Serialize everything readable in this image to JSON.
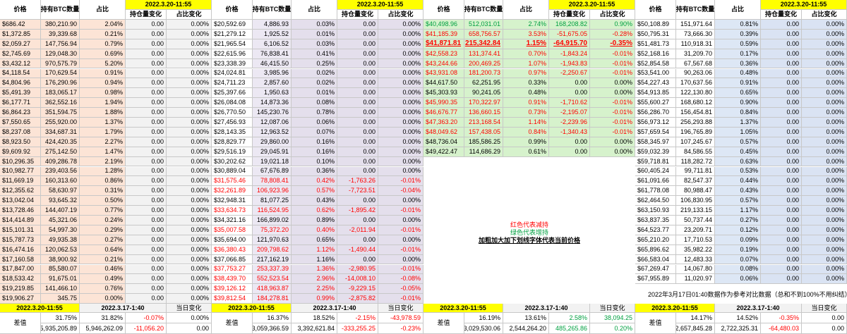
{
  "blocks": [
    {
      "header": {
        "price": "价格",
        "qty": "持有BTC数量",
        "pct": "占比",
        "date": "2022.3.20-11:55",
        "change": "持仓量变化",
        "pct_change": "占比变化"
      },
      "rows": [
        [
          "$686.42",
          "380,210.90",
          "2.04%",
          "0.00",
          "0.00%"
        ],
        [
          "$1,372.85",
          "39,339.68",
          "0.21%",
          "0.00",
          "0.00%"
        ],
        [
          "$2,059.27",
          "147,756.94",
          "0.79%",
          "0.00",
          "0.00%"
        ],
        [
          "$2,745.69",
          "129,048.30",
          "0.69%",
          "0.00",
          "0.00%"
        ],
        [
          "$3,432.12",
          "970,575.79",
          "5.20%",
          "0.00",
          "0.00%"
        ],
        [
          "$4,118.54",
          "170,629.54",
          "0.91%",
          "0.00",
          "0.00%"
        ],
        [
          "$4,804.96",
          "176,290.96",
          "0.94%",
          "0.00",
          "0.00%"
        ],
        [
          "$5,491.39",
          "183,065.17",
          "0.98%",
          "0.00",
          "0.00%"
        ],
        [
          "$6,177.71",
          "362,552.16",
          "1.94%",
          "0.00",
          "0.00%"
        ],
        [
          "$6,864.23",
          "351,594.75",
          "1.88%",
          "0.00",
          "0.00%"
        ],
        [
          "$7,550.65",
          "255,920.00",
          "1.37%",
          "0.00",
          "0.00%"
        ],
        [
          "$8,237.08",
          "334,687.31",
          "1.79%",
          "0.00",
          "0.00%"
        ],
        [
          "$8,923.50",
          "424,420.35",
          "2.27%",
          "0.00",
          "0.00%"
        ],
        [
          "$9,609.92",
          "275,142.50",
          "1.47%",
          "0.00",
          "0.00%"
        ],
        [
          "$10,296.35",
          "409,286.78",
          "2.19%",
          "0.00",
          "0.00%"
        ],
        [
          "$10,982.77",
          "239,403.56",
          "1.28%",
          "0.00",
          "0.00%"
        ],
        [
          "$11,669.19",
          "160,313.60",
          "0.86%",
          "0.00",
          "0.00%"
        ],
        [
          "$12,355.62",
          "58,630.97",
          "0.31%",
          "0.00",
          "0.00%"
        ],
        [
          "$13,042.04",
          "93,645.32",
          "0.50%",
          "0.00",
          "0.00%"
        ],
        [
          "$13,728.46",
          "144,407.19",
          "0.77%",
          "0.00",
          "0.00%"
        ],
        [
          "$14,414.89",
          "45,321.06",
          "0.24%",
          "0.00",
          "0.00%"
        ],
        [
          "$15,101.31",
          "54,997.30",
          "0.29%",
          "0.00",
          "0.00%"
        ],
        [
          "$15,787.73",
          "49,935.38",
          "0.27%",
          "0.00",
          "0.00%"
        ],
        [
          "$16,474.16",
          "120,062.53",
          "0.64%",
          "0.00",
          "0.00%"
        ],
        [
          "$17,160.58",
          "38,900.92",
          "0.21%",
          "0.00",
          "0.00%"
        ],
        [
          "$17,847.00",
          "85,580.07",
          "0.46%",
          "0.00",
          "0.00%"
        ],
        [
          "$18,533.42",
          "91,675.01",
          "0.49%",
          "0.00",
          "0.00%"
        ],
        [
          "$19,219.85",
          "141,466.10",
          "0.76%",
          "0.00",
          "0.00%"
        ],
        [
          "$19,906.27",
          "345.75",
          "0.00%",
          "0.00",
          "0.00%"
        ]
      ],
      "footer": {
        "date_now": "2022.3.20-11:55",
        "date_ref": "2022.3.17-1:40",
        "change_label": "当日变化",
        "diff_label": "差值",
        "pct": [
          "31.75%",
          "31.82%",
          "-0.07%",
          "0.00%"
        ],
        "amount": [
          "5,935,205.89",
          "5,946,262.09",
          "-11,056.20",
          "0.00"
        ]
      }
    },
    {
      "header": {
        "price": "价格",
        "qty": "持有BTC数量",
        "pct": "占比",
        "date": "2022.3.20-11:55",
        "change": "持仓量变化",
        "pct_change": "占比变化"
      },
      "rows": [
        [
          "$20,592.69",
          "4,886.93",
          "0.03%",
          "0.00",
          "0.00%"
        ],
        [
          "$21,279.12",
          "1,925.52",
          "0.01%",
          "0.00",
          "0.00%"
        ],
        [
          "$21,965.54",
          "6,106.52",
          "0.03%",
          "0.00",
          "0.00%"
        ],
        [
          "$22,615.96",
          "76,838.41",
          "0.41%",
          "0.00",
          "0.00%"
        ],
        [
          "$23,338.39",
          "46,415.50",
          "0.25%",
          "0.00",
          "0.00%"
        ],
        [
          "$24,024.81",
          "3,985.96",
          "0.02%",
          "0.00",
          "0.00%"
        ],
        [
          "$24,711.23",
          "2,857.60",
          "0.02%",
          "0.00",
          "0.00%"
        ],
        [
          "$25,397.66",
          "1,950.63",
          "0.01%",
          "0.00",
          "0.00%"
        ],
        [
          "$26,084.08",
          "14,873.36",
          "0.08%",
          "0.00",
          "0.00%"
        ],
        [
          "$26,770.50",
          "145,230.76",
          "0.78%",
          "0.00",
          "0.00%"
        ],
        [
          "$27,456.93",
          "12,087.06",
          "0.06%",
          "0.00",
          "0.00%"
        ],
        [
          "$28,143.35",
          "12,963.52",
          "0.07%",
          "0.00",
          "0.00%"
        ],
        [
          "$28,829.77",
          "29,860.00",
          "0.16%",
          "0.00",
          "0.00%"
        ],
        [
          "$29,516.19",
          "29,045.91",
          "0.16%",
          "0.00",
          "0.00%"
        ],
        [
          "$30,202.62",
          "19,021.18",
          "0.10%",
          "0.00",
          "0.00%"
        ],
        [
          "$30,889.04",
          "67,676.89",
          "0.36%",
          "0.00",
          "0.00%"
        ],
        [
          "$31,575.46",
          "78,808.41",
          "0.42%",
          "-1,763.26",
          "-0.01%"
        ],
        [
          "$32,261.89",
          "106,923.96",
          "0.57%",
          "-7,723.51",
          "-0.04%"
        ],
        [
          "$32,948.31",
          "81,077.25",
          "0.43%",
          "0.00",
          "0.00%"
        ],
        [
          "$33,634.73",
          "116,524.95",
          "0.62%",
          "-1,895.42",
          "-0.01%"
        ],
        [
          "$34,321.16",
          "166,899.02",
          "0.89%",
          "0.00",
          "0.00%"
        ],
        [
          "$35,007.58",
          "75,372.20",
          "0.40%",
          "-2,011.94",
          "-0.01%"
        ],
        [
          "$35,694.00",
          "121,970.63",
          "0.65%",
          "0.00",
          "0.00%"
        ],
        [
          "$36,380.43",
          "209,798.62",
          "1.12%",
          "-1,490.44",
          "-0.01%"
        ],
        [
          "$37,066.85",
          "217,162.19",
          "1.16%",
          "0.00",
          "0.00%"
        ],
        [
          "$37,753.27",
          "253,337.39",
          "1.36%",
          "-2,980.95",
          "-0.01%"
        ],
        [
          "$38,439.70",
          "552,523.54",
          "2.96%",
          "-14,008.10",
          "-0.08%"
        ],
        [
          "$39,126.12",
          "418,963.87",
          "2.25%",
          "-9,229.15",
          "-0.05%"
        ],
        [
          "$39,812.54",
          "184,278.81",
          "0.99%",
          "-2,875.82",
          "-0.01%"
        ]
      ],
      "footer": {
        "date_now": "2022.3.20-11:55",
        "date_ref": "2022.3.17-1:40",
        "change_label": "当日变化",
        "diff_label": "差值",
        "pct": [
          "16.37%",
          "18.52%",
          "-2.15%",
          "-43,978.59"
        ],
        "amount": [
          "3,059,366.59",
          "3,392,621.84",
          "-333,255.25",
          "-0.23%"
        ]
      }
    },
    {
      "header": {
        "price": "价格",
        "qty": "持有BTC数量",
        "pct": "占比",
        "date": "2022.3.20-11:55",
        "change": "持仓量变化",
        "pct_change": "占比变化"
      },
      "rows": [
        [
          "$40,498.96",
          "512,031.01",
          "2.74%",
          "168,208.82",
          "0.90%"
        ],
        [
          "$41,185.39",
          "658,756.57",
          "3.53%",
          "-51,675.05",
          "-0.28%"
        ],
        [
          "$41,871.81",
          "215,342.84",
          "1.15%",
          "-64,915.70",
          "-0.35%"
        ],
        [
          "$42,558.23",
          "131,374.41",
          "0.70%",
          "-1,843.24",
          "-0.01%"
        ],
        [
          "$43,244.66",
          "200,469.25",
          "1.07%",
          "-1,943.83",
          "-0.01%"
        ],
        [
          "$43,931.08",
          "181,200.73",
          "0.97%",
          "-2,250.67",
          "-0.01%"
        ],
        [
          "$44,617.50",
          "62,251.95",
          "0.33%",
          "0.00",
          "0.00%"
        ],
        [
          "$45,303.93",
          "90,241.05",
          "0.48%",
          "0.00",
          "0.00%"
        ],
        [
          "$45,990.35",
          "170,322.97",
          "0.91%",
          "-1,710.62",
          "-0.01%"
        ],
        [
          "$46,676.77",
          "136,660.15",
          "0.73%",
          "-2,195.07",
          "-0.01%"
        ],
        [
          "$47,363.20",
          "213,168.54",
          "1.14%",
          "-2,239.96",
          "-0.01%"
        ],
        [
          "$48,049.62",
          "157,438.05",
          "0.84%",
          "-1,340.43",
          "-0.01%"
        ],
        [
          "$48,736.04",
          "185,586.25",
          "0.99%",
          "0.00",
          "0.00%"
        ],
        [
          "$49,422.47",
          "114,686.29",
          "0.61%",
          "0.00",
          "0.00%"
        ]
      ],
      "current_row": 2,
      "notes": [
        "红色代表减持",
        "绿色代表增持",
        "加粗加大加下划线字体代表当前价格"
      ],
      "footer": {
        "date_now": "2022.3.20-11:55",
        "date_ref": "2022.3.17-1:40",
        "change_label": "当日变化",
        "diff_label": "差值",
        "pct": [
          "16.19%",
          "13.61%",
          "2.58%",
          "38,094.25"
        ],
        "amount": [
          "3,029,530.06",
          "2,544,264.20",
          "485,265.86",
          "0.20%"
        ]
      }
    },
    {
      "header": {
        "price": "价格",
        "qty": "持有BTC数量",
        "pct": "占比",
        "date": "2022.3.20-11:55",
        "change": "持仓量变化",
        "pct_change": "占比变化"
      },
      "rows": [
        [
          "$50,108.89",
          "151,971.64",
          "0.81%",
          "0.00",
          "0.00%"
        ],
        [
          "$50,795.31",
          "73,666.30",
          "0.39%",
          "0.00",
          "0.00%"
        ],
        [
          "$51,481.73",
          "110,918.31",
          "0.59%",
          "0.00",
          "0.00%"
        ],
        [
          "$52,168.16",
          "31,209.70",
          "0.17%",
          "0.00",
          "0.00%"
        ],
        [
          "$52,854.58",
          "67,567.68",
          "0.36%",
          "0.00",
          "0.00%"
        ],
        [
          "$53,541.00",
          "90,263.06",
          "0.48%",
          "0.00",
          "0.00%"
        ],
        [
          "$54,227.43",
          "170,637.56",
          "0.91%",
          "0.00",
          "0.00%"
        ],
        [
          "$54,913.85",
          "122,130.80",
          "0.65%",
          "0.00",
          "0.00%"
        ],
        [
          "$55,600.27",
          "168,680.12",
          "0.90%",
          "0.00",
          "0.00%"
        ],
        [
          "$56,286.70",
          "156,454.81",
          "0.84%",
          "0.00",
          "0.00%"
        ],
        [
          "$56,973.12",
          "256,293.88",
          "1.37%",
          "0.00",
          "0.00%"
        ],
        [
          "$57,659.54",
          "196,765.89",
          "1.05%",
          "0.00",
          "0.00%"
        ],
        [
          "$58,345.97",
          "107,245.67",
          "0.57%",
          "0.00",
          "0.00%"
        ],
        [
          "$59,032.39",
          "84,586.55",
          "0.45%",
          "0.00",
          "0.00%"
        ],
        [
          "$59,718.81",
          "118,282.72",
          "0.63%",
          "0.00",
          "0.00%"
        ],
        [
          "$60,405.24",
          "99,711.81",
          "0.53%",
          "0.00",
          "0.00%"
        ],
        [
          "$61,091.66",
          "82,547.37",
          "0.44%",
          "0.00",
          "0.00%"
        ],
        [
          "$61,778.08",
          "80,988.47",
          "0.43%",
          "0.00",
          "0.00%"
        ],
        [
          "$62,464.50",
          "106,830.95",
          "0.57%",
          "0.00",
          "0.00%"
        ],
        [
          "$63,150.93",
          "219,133.15",
          "1.17%",
          "0.00",
          "0.00%"
        ],
        [
          "$63,837.35",
          "50,737.44",
          "0.27%",
          "0.00",
          "0.00%"
        ],
        [
          "$64,523.77",
          "23,209.71",
          "0.12%",
          "0.00",
          "0.00%"
        ],
        [
          "$65,210.20",
          "17,710.53",
          "0.09%",
          "0.00",
          "0.00%"
        ],
        [
          "$65,896.62",
          "35,982.22",
          "0.19%",
          "0.00",
          "0.00%"
        ],
        [
          "$66,583.04",
          "12,483.33",
          "0.07%",
          "0.00",
          "0.00%"
        ],
        [
          "$67,269.47",
          "14,067.80",
          "0.08%",
          "0.00",
          "0.00%"
        ],
        [
          "$67,955.89",
          "11,020.97",
          "0.06%",
          "0.00",
          "0.00%"
        ]
      ],
      "note": "2022年3月17日01:40数据作为参考对比数据（总和不到100%不用纠结）",
      "footer": {
        "date_now": "2022.3.20-11:55",
        "date_ref": "2022.3.17-1:40",
        "change_label": "当日变化",
        "diff_label": "差值",
        "pct": [
          "14.17%",
          "14.52%",
          "-0.35%",
          "0.00"
        ],
        "amount": [
          "2,657,845.28",
          "2,722,325.31",
          "-64,480.03",
          "0.00"
        ]
      }
    }
  ]
}
